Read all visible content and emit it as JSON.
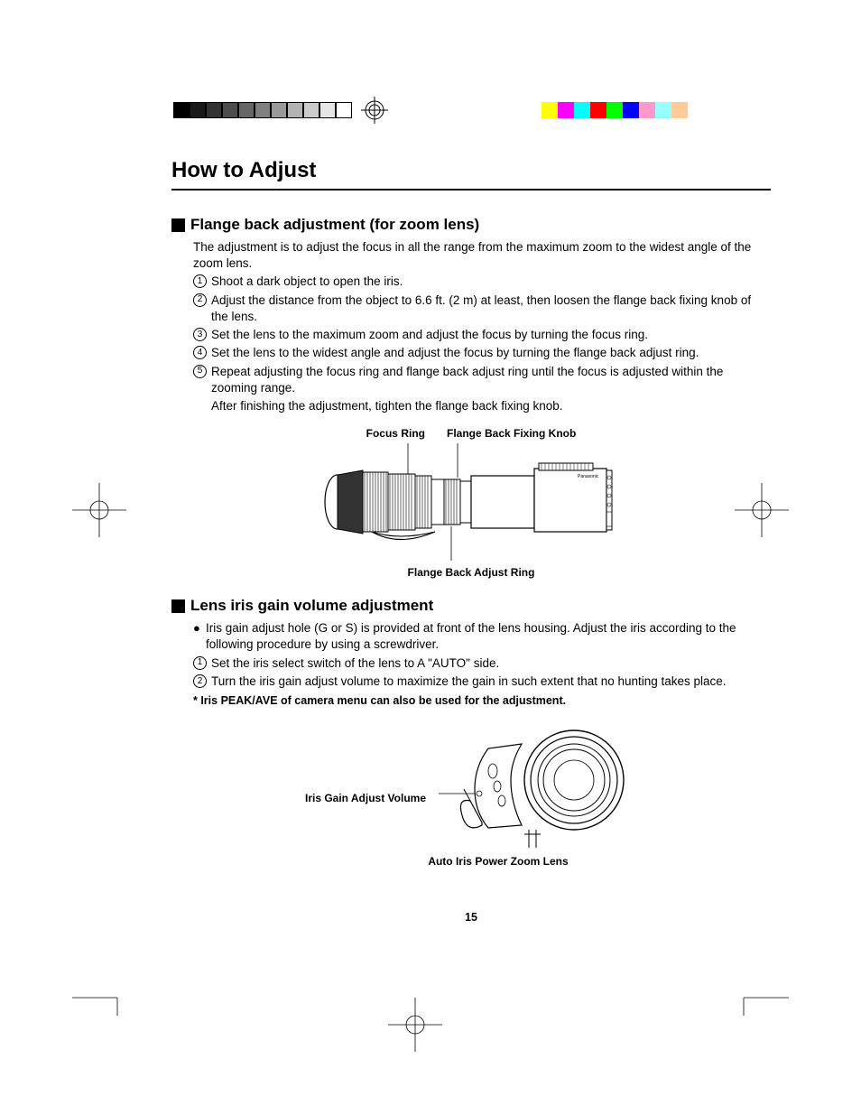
{
  "grayscale_colors": [
    "#000000",
    "#1a1a1a",
    "#333333",
    "#4d4d4d",
    "#666666",
    "#808080",
    "#999999",
    "#b3b3b3",
    "#cccccc",
    "#e6e6e6",
    "#ffffff"
  ],
  "color_swatches": [
    "#ffff00",
    "#ff00ff",
    "#00ffff",
    "#ff0000",
    "#00ff00",
    "#0000ff",
    "#ff99cc",
    "#99ffff",
    "#ffcc99"
  ],
  "title": "How to Adjust",
  "section1": {
    "heading": "Flange back adjustment (for zoom lens)",
    "intro": "The adjustment is to adjust the focus in all the range from the maximum zoom to the widest angle of the zoom lens.",
    "steps": [
      "Shoot a dark object to open the iris.",
      "Adjust the distance from the object to 6.6 ft. (2 m) at least, then loosen the flange back fixing knob of the lens.",
      "Set the lens to the maximum zoom and adjust the focus by turning the focus ring.",
      "Set the lens to the widest angle and adjust the focus by turning the flange back adjust ring.",
      "Repeat adjusting the focus ring and flange back adjust ring until the focus is adjusted within the zooming range."
    ],
    "after": "After finishing the adjustment, tighten the flange back fixing knob.",
    "fig_labels": {
      "focus_ring": "Focus Ring",
      "flange_knob": "Flange Back Fixing Knob",
      "flange_ring": "Flange Back Adjust Ring"
    }
  },
  "section2": {
    "heading": "Lens iris gain volume adjustment",
    "bullet": "Iris gain adjust hole (G or S) is provided at front of the lens housing.  Adjust the iris according to the following procedure by using a screwdriver.",
    "steps": [
      "Set the iris select switch of the lens to A \"AUTO\" side.",
      "Turn the iris gain adjust volume to maximize the gain in such extent that no hunting takes place."
    ],
    "note": "* Iris PEAK/AVE of camera menu can also be used for the adjustment.",
    "fig_labels": {
      "iris_gain": "Iris Gain Adjust Volume",
      "auto_iris": "Auto Iris Power Zoom Lens"
    }
  },
  "page_number": "15"
}
